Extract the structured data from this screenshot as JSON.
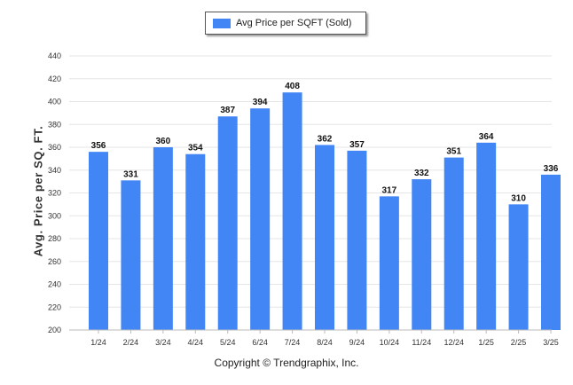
{
  "chart_data": {
    "type": "bar",
    "categories": [
      "1/24",
      "2/24",
      "3/24",
      "4/24",
      "5/24",
      "6/24",
      "7/24",
      "8/24",
      "9/24",
      "10/24",
      "11/24",
      "12/24",
      "1/25",
      "2/25",
      "3/25"
    ],
    "series": [
      {
        "name": "Avg Price per SQFT (Sold)",
        "values": [
          356,
          331,
          360,
          354,
          387,
          394,
          408,
          362,
          357,
          317,
          332,
          351,
          364,
          310,
          336
        ]
      }
    ],
    "ylabel": "Avg. Price per SQ. FT.",
    "xlabel": "",
    "ylim": [
      200,
      440
    ],
    "yticks": [
      200,
      220,
      240,
      260,
      280,
      300,
      320,
      340,
      360,
      380,
      400,
      420,
      440
    ],
    "grid": true,
    "legend_position": "top-center",
    "colors": {
      "bar": "#4285f4",
      "grid": "#e6e6e6",
      "axis": "#bbbbbb"
    }
  },
  "footer": {
    "copyright": "Copyright © Trendgraphix, Inc."
  }
}
